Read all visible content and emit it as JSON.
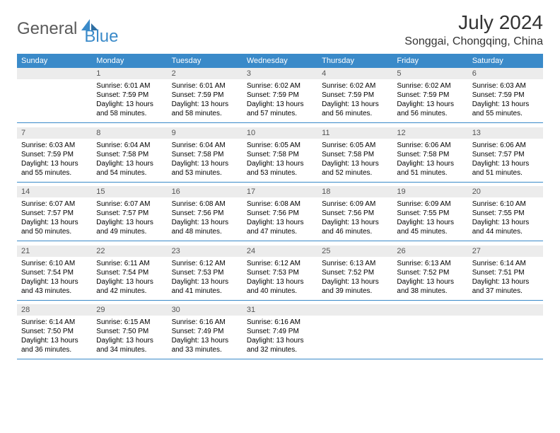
{
  "brand": {
    "g": "General",
    "b": "Blue"
  },
  "title": "July 2024",
  "location": "Songgai, Chongqing, China",
  "colors": {
    "accent": "#3a8ac9",
    "daynum_bg": "#ececec",
    "text": "#000000",
    "title_text": "#333333",
    "logo_gray": "#5a5a5a"
  },
  "dow": [
    "Sunday",
    "Monday",
    "Tuesday",
    "Wednesday",
    "Thursday",
    "Friday",
    "Saturday"
  ],
  "weeks": [
    [
      null,
      {
        "n": "1",
        "sr": "Sunrise: 6:01 AM",
        "ss": "Sunset: 7:59 PM",
        "dl": "Daylight: 13 hours and 58 minutes."
      },
      {
        "n": "2",
        "sr": "Sunrise: 6:01 AM",
        "ss": "Sunset: 7:59 PM",
        "dl": "Daylight: 13 hours and 58 minutes."
      },
      {
        "n": "3",
        "sr": "Sunrise: 6:02 AM",
        "ss": "Sunset: 7:59 PM",
        "dl": "Daylight: 13 hours and 57 minutes."
      },
      {
        "n": "4",
        "sr": "Sunrise: 6:02 AM",
        "ss": "Sunset: 7:59 PM",
        "dl": "Daylight: 13 hours and 56 minutes."
      },
      {
        "n": "5",
        "sr": "Sunrise: 6:02 AM",
        "ss": "Sunset: 7:59 PM",
        "dl": "Daylight: 13 hours and 56 minutes."
      },
      {
        "n": "6",
        "sr": "Sunrise: 6:03 AM",
        "ss": "Sunset: 7:59 PM",
        "dl": "Daylight: 13 hours and 55 minutes."
      }
    ],
    [
      {
        "n": "7",
        "sr": "Sunrise: 6:03 AM",
        "ss": "Sunset: 7:59 PM",
        "dl": "Daylight: 13 hours and 55 minutes."
      },
      {
        "n": "8",
        "sr": "Sunrise: 6:04 AM",
        "ss": "Sunset: 7:58 PM",
        "dl": "Daylight: 13 hours and 54 minutes."
      },
      {
        "n": "9",
        "sr": "Sunrise: 6:04 AM",
        "ss": "Sunset: 7:58 PM",
        "dl": "Daylight: 13 hours and 53 minutes."
      },
      {
        "n": "10",
        "sr": "Sunrise: 6:05 AM",
        "ss": "Sunset: 7:58 PM",
        "dl": "Daylight: 13 hours and 53 minutes."
      },
      {
        "n": "11",
        "sr": "Sunrise: 6:05 AM",
        "ss": "Sunset: 7:58 PM",
        "dl": "Daylight: 13 hours and 52 minutes."
      },
      {
        "n": "12",
        "sr": "Sunrise: 6:06 AM",
        "ss": "Sunset: 7:58 PM",
        "dl": "Daylight: 13 hours and 51 minutes."
      },
      {
        "n": "13",
        "sr": "Sunrise: 6:06 AM",
        "ss": "Sunset: 7:57 PM",
        "dl": "Daylight: 13 hours and 51 minutes."
      }
    ],
    [
      {
        "n": "14",
        "sr": "Sunrise: 6:07 AM",
        "ss": "Sunset: 7:57 PM",
        "dl": "Daylight: 13 hours and 50 minutes."
      },
      {
        "n": "15",
        "sr": "Sunrise: 6:07 AM",
        "ss": "Sunset: 7:57 PM",
        "dl": "Daylight: 13 hours and 49 minutes."
      },
      {
        "n": "16",
        "sr": "Sunrise: 6:08 AM",
        "ss": "Sunset: 7:56 PM",
        "dl": "Daylight: 13 hours and 48 minutes."
      },
      {
        "n": "17",
        "sr": "Sunrise: 6:08 AM",
        "ss": "Sunset: 7:56 PM",
        "dl": "Daylight: 13 hours and 47 minutes."
      },
      {
        "n": "18",
        "sr": "Sunrise: 6:09 AM",
        "ss": "Sunset: 7:56 PM",
        "dl": "Daylight: 13 hours and 46 minutes."
      },
      {
        "n": "19",
        "sr": "Sunrise: 6:09 AM",
        "ss": "Sunset: 7:55 PM",
        "dl": "Daylight: 13 hours and 45 minutes."
      },
      {
        "n": "20",
        "sr": "Sunrise: 6:10 AM",
        "ss": "Sunset: 7:55 PM",
        "dl": "Daylight: 13 hours and 44 minutes."
      }
    ],
    [
      {
        "n": "21",
        "sr": "Sunrise: 6:10 AM",
        "ss": "Sunset: 7:54 PM",
        "dl": "Daylight: 13 hours and 43 minutes."
      },
      {
        "n": "22",
        "sr": "Sunrise: 6:11 AM",
        "ss": "Sunset: 7:54 PM",
        "dl": "Daylight: 13 hours and 42 minutes."
      },
      {
        "n": "23",
        "sr": "Sunrise: 6:12 AM",
        "ss": "Sunset: 7:53 PM",
        "dl": "Daylight: 13 hours and 41 minutes."
      },
      {
        "n": "24",
        "sr": "Sunrise: 6:12 AM",
        "ss": "Sunset: 7:53 PM",
        "dl": "Daylight: 13 hours and 40 minutes."
      },
      {
        "n": "25",
        "sr": "Sunrise: 6:13 AM",
        "ss": "Sunset: 7:52 PM",
        "dl": "Daylight: 13 hours and 39 minutes."
      },
      {
        "n": "26",
        "sr": "Sunrise: 6:13 AM",
        "ss": "Sunset: 7:52 PM",
        "dl": "Daylight: 13 hours and 38 minutes."
      },
      {
        "n": "27",
        "sr": "Sunrise: 6:14 AM",
        "ss": "Sunset: 7:51 PM",
        "dl": "Daylight: 13 hours and 37 minutes."
      }
    ],
    [
      {
        "n": "28",
        "sr": "Sunrise: 6:14 AM",
        "ss": "Sunset: 7:50 PM",
        "dl": "Daylight: 13 hours and 36 minutes."
      },
      {
        "n": "29",
        "sr": "Sunrise: 6:15 AM",
        "ss": "Sunset: 7:50 PM",
        "dl": "Daylight: 13 hours and 34 minutes."
      },
      {
        "n": "30",
        "sr": "Sunrise: 6:16 AM",
        "ss": "Sunset: 7:49 PM",
        "dl": "Daylight: 13 hours and 33 minutes."
      },
      {
        "n": "31",
        "sr": "Sunrise: 6:16 AM",
        "ss": "Sunset: 7:49 PM",
        "dl": "Daylight: 13 hours and 32 minutes."
      },
      null,
      null,
      null
    ]
  ]
}
